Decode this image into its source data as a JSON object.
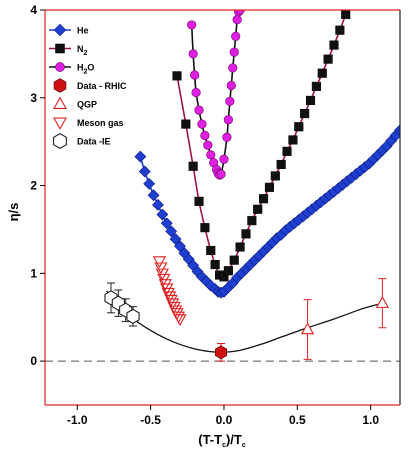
{
  "chart_data": {
    "type": "scatter",
    "xlabel": {
      "pre": "(T-T",
      "sub1": "c",
      "mid": ")/T",
      "sub2": "c"
    },
    "ylabel": "η/s",
    "xlim": [
      -1.22,
      1.2
    ],
    "ylim": [
      -0.5,
      4.0
    ],
    "x_ticks": [
      -1.0,
      -0.5,
      0.0,
      0.5,
      1.0
    ],
    "x_tick_labels": [
      "-1.0",
      "-0.5",
      "0.0",
      "0.5",
      "1.0"
    ],
    "y_ticks": [
      0,
      1,
      2,
      3,
      4
    ],
    "y_tick_labels": [
      "0",
      "1",
      "2",
      "3",
      "4"
    ],
    "reference_line_y": 0,
    "legend_position": "top-left",
    "series": [
      {
        "name": "He",
        "marker": "diamond",
        "color": "#1f3fd0",
        "line_color": "#1f3fd0",
        "x": [
          -0.57,
          -0.54,
          -0.51,
          -0.48,
          -0.45,
          -0.42,
          -0.39,
          -0.36,
          -0.33,
          -0.3,
          -0.27,
          -0.24,
          -0.21,
          -0.18,
          -0.15,
          -0.12,
          -0.09,
          -0.06,
          -0.04,
          -0.02,
          0.0,
          0.03,
          0.06,
          0.09,
          0.12,
          0.15,
          0.18,
          0.21,
          0.24,
          0.27,
          0.3,
          0.33,
          0.36,
          0.39,
          0.42,
          0.45,
          0.48,
          0.51,
          0.54,
          0.57,
          0.6,
          0.63,
          0.66,
          0.69,
          0.72,
          0.75,
          0.78,
          0.81,
          0.84,
          0.87,
          0.9,
          0.93,
          0.96,
          0.99,
          1.02,
          1.05,
          1.08,
          1.11,
          1.14,
          1.17,
          1.2
        ],
        "y": [
          2.33,
          2.16,
          2.02,
          1.89,
          1.78,
          1.67,
          1.57,
          1.48,
          1.39,
          1.31,
          1.23,
          1.16,
          1.09,
          1.02,
          0.96,
          0.91,
          0.86,
          0.82,
          0.79,
          0.78,
          0.79,
          0.84,
          0.89,
          0.95,
          1.0,
          1.05,
          1.1,
          1.15,
          1.2,
          1.25,
          1.3,
          1.35,
          1.4,
          1.44,
          1.49,
          1.53,
          1.57,
          1.61,
          1.65,
          1.69,
          1.73,
          1.77,
          1.81,
          1.85,
          1.89,
          1.93,
          1.97,
          2.01,
          2.05,
          2.09,
          2.13,
          2.17,
          2.21,
          2.25,
          2.3,
          2.35,
          2.4,
          2.45,
          2.51,
          2.57,
          2.63
        ]
      },
      {
        "name": "N2",
        "label_base": "N",
        "label_sub": "2",
        "marker": "square",
        "color": "#111111",
        "line_color": "#a0153e",
        "x": [
          -0.32,
          -0.26,
          -0.21,
          -0.17,
          -0.13,
          -0.09,
          -0.06,
          -0.03,
          0.0,
          0.03,
          0.07,
          0.11,
          0.15,
          0.19,
          0.23,
          0.27,
          0.31,
          0.35,
          0.39,
          0.43,
          0.47,
          0.51,
          0.55,
          0.59,
          0.63,
          0.67,
          0.71,
          0.75,
          0.79,
          0.83
        ],
        "y": [
          3.25,
          2.7,
          2.22,
          1.82,
          1.52,
          1.26,
          1.1,
          0.98,
          0.96,
          1.03,
          1.15,
          1.3,
          1.45,
          1.6,
          1.73,
          1.85,
          1.98,
          2.11,
          2.24,
          2.39,
          2.52,
          2.67,
          2.82,
          2.97,
          3.13,
          3.28,
          3.44,
          3.6,
          3.77,
          3.95
        ]
      },
      {
        "name": "H2O",
        "label_base": "H",
        "label_sub": "2",
        "label_post": "O",
        "marker": "circle",
        "color": "#e020e0",
        "line_color": "#111111",
        "x": [
          -0.22,
          -0.21,
          -0.2,
          -0.19,
          -0.17,
          -0.15,
          -0.13,
          -0.11,
          -0.09,
          -0.07,
          -0.05,
          -0.04,
          -0.03,
          -0.02,
          0.0,
          0.02,
          0.03,
          0.04,
          0.05,
          0.06,
          0.07,
          0.08,
          0.09,
          0.1,
          0.11
        ],
        "y": [
          3.83,
          3.5,
          3.26,
          3.06,
          2.86,
          2.7,
          2.57,
          2.46,
          2.35,
          2.26,
          2.18,
          2.14,
          2.12,
          2.13,
          2.3,
          2.55,
          2.75,
          2.96,
          3.14,
          3.34,
          3.52,
          3.7,
          3.89,
          3.98,
          4.0
        ]
      },
      {
        "name": "Data - RHIC",
        "marker": "hexagon-filled",
        "color": "#d01010",
        "x": [
          -0.02
        ],
        "y": [
          0.1
        ],
        "yerr": [
          0.1
        ]
      },
      {
        "name": "QGP",
        "marker": "triangle-up-open",
        "color": "#e02020",
        "x": [
          0.57,
          1.08
        ],
        "y": [
          0.36,
          0.66
        ],
        "yerr": [
          0.34,
          0.28
        ]
      },
      {
        "name": "Meson gas",
        "marker": "triangle-down-open",
        "color": "#e02020",
        "x": [
          -0.44,
          -0.43,
          -0.42,
          -0.41,
          -0.4,
          -0.39,
          -0.38,
          -0.37,
          -0.36,
          -0.35,
          -0.34,
          -0.33,
          -0.32,
          -0.31,
          -0.3
        ],
        "y": [
          1.14,
          1.07,
          1.0,
          0.94,
          0.88,
          0.83,
          0.78,
          0.74,
          0.7,
          0.66,
          0.62,
          0.58,
          0.55,
          0.51,
          0.48
        ]
      },
      {
        "name": "Data -IE",
        "marker": "hexagon-open",
        "color": "#222222",
        "x": [
          -0.77,
          -0.72,
          -0.67,
          -0.62
        ],
        "y": [
          0.72,
          0.66,
          0.58,
          0.51
        ],
        "yerr": [
          0.17,
          0.15,
          0.13,
          0.11
        ]
      }
    ],
    "fit_curve": {
      "color": "#111111",
      "x": [
        -0.8,
        -0.7,
        -0.6,
        -0.5,
        -0.4,
        -0.3,
        -0.2,
        -0.1,
        -0.02,
        0.1,
        0.25,
        0.4,
        0.57,
        0.75,
        0.95,
        1.08
      ],
      "y": [
        0.8,
        0.62,
        0.46,
        0.35,
        0.26,
        0.19,
        0.14,
        0.11,
        0.1,
        0.12,
        0.19,
        0.28,
        0.38,
        0.48,
        0.6,
        0.66
      ]
    }
  }
}
